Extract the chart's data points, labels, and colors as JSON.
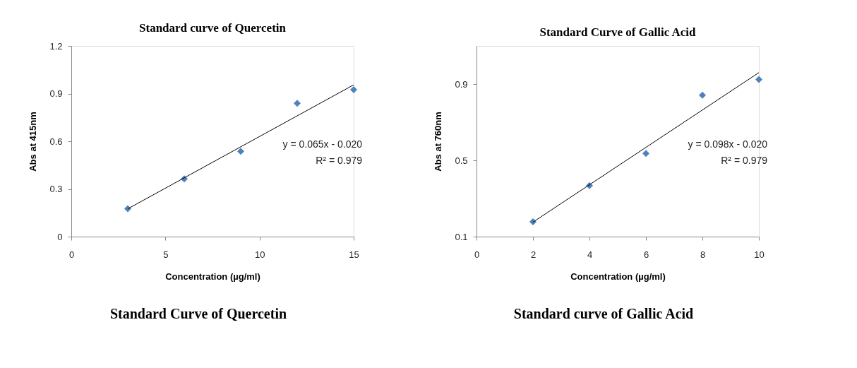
{
  "chart_data": [
    {
      "type": "scatter",
      "title": "Standard curve of Quercetin",
      "xlabel": "Concentration (µg/ml)",
      "ylabel": "Abs at 415nm",
      "marker": "diamond",
      "grid": false,
      "xlim": [
        0,
        15
      ],
      "xticks": [
        0,
        5,
        10,
        15
      ],
      "ylim": [
        0,
        1.2
      ],
      "yticks": [
        {
          "value": 0,
          "label": "0"
        },
        0.3,
        0.6,
        0.9,
        1.2
      ],
      "series": [
        {
          "color": "#4f81bd",
          "x": [
            3,
            6,
            9,
            12,
            15
          ],
          "values": [
            0.176,
            0.363,
            0.537,
            0.839,
            0.924
          ]
        },
        {
          "type": "line",
          "marker": "none",
          "color": "#000000",
          "x": [
            3,
            15
          ],
          "values": [
            0.175,
            0.955
          ]
        }
      ],
      "annotations": [
        "y = 0.065x - 0.020",
        "R² = 0.979",
        "Standard Curve of Quercetin"
      ]
    },
    {
      "type": "scatter",
      "title": "Standard Curve of Gallic Acid",
      "xlabel": "Concentration (µg/ml)",
      "ylabel": "Abs at 760nm",
      "marker": "diamond",
      "grid": false,
      "xlim": [
        0,
        10
      ],
      "xticks": [
        0,
        2,
        4,
        6,
        8,
        10
      ],
      "ylim": [
        0.1,
        1.1
      ],
      "yticks": [
        0.1,
        0.5,
        0.9
      ],
      "series": [
        {
          "color": "#4f81bd",
          "x": [
            2,
            4,
            6,
            8,
            10
          ],
          "values": [
            0.178,
            0.368,
            0.536,
            0.842,
            0.924
          ]
        },
        {
          "type": "line",
          "marker": "none",
          "color": "#000000",
          "x": [
            2,
            10
          ],
          "values": [
            0.176,
            0.96
          ]
        }
      ],
      "annotations": [
        "y = 0.098x - 0.020",
        "R² = 0.979",
        "Standard curve of Gallic Acid"
      ]
    }
  ]
}
